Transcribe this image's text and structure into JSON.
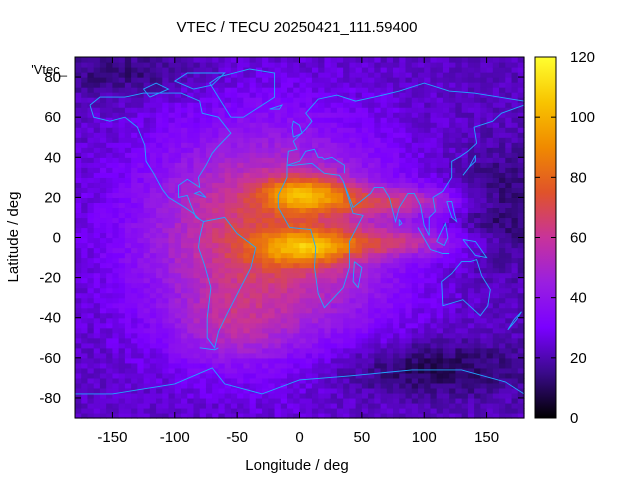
{
  "chart_data": {
    "type": "heatmap",
    "title": "VTEC / TECU 20250421_111.59400",
    "xlabel": "Longitude / deg",
    "ylabel": "Latitude / deg",
    "series_label": "'Vtec_",
    "xlim": [
      -180,
      180
    ],
    "ylim": [
      -90,
      90
    ],
    "xticks": [
      -150,
      -100,
      -50,
      0,
      50,
      100,
      150
    ],
    "xtick_labels": [
      "-150",
      "-100",
      "-50",
      "0",
      "50",
      "100",
      "150"
    ],
    "yticks": [
      -80,
      -60,
      -40,
      -20,
      0,
      20,
      40,
      60,
      80
    ],
    "ytick_labels": [
      "-80",
      "-60",
      "-40",
      "-20",
      "0",
      "20",
      "40",
      "60",
      "80"
    ],
    "colorbar": {
      "range": [
        0,
        120
      ],
      "ticks": [
        0,
        20,
        40,
        60,
        80,
        100,
        120
      ],
      "tick_labels": [
        "0",
        "20",
        "40",
        "60",
        "80",
        "100",
        "120"
      ]
    },
    "grid_resolution_deg": [
      5,
      2.5
    ],
    "background_vtec": 22,
    "vtec_features": [
      {
        "name": "northern-crest-africa",
        "lon": 5,
        "lat": 22,
        "peak": 42,
        "sigma_lon": 25,
        "sigma_lat": 6
      },
      {
        "name": "southern-crest-africa",
        "lon": 5,
        "lat": -5,
        "peak": 38,
        "sigma_lon": 28,
        "sigma_lat": 6
      },
      {
        "name": "sunlit-hemisphere",
        "lon": -25,
        "lat": 0,
        "peak": 48,
        "sigma_lon": 70,
        "sigma_lat": 38
      },
      {
        "name": "northern-crest-asia",
        "lon": 80,
        "lat": 18,
        "peak": 28,
        "sigma_lon": 40,
        "sigma_lat": 5
      },
      {
        "name": "southern-crest-asia",
        "lon": 80,
        "lat": -2,
        "peak": 26,
        "sigma_lon": 40,
        "sigma_lat": 5
      },
      {
        "name": "south-atlantic-tail",
        "lon": -55,
        "lat": -45,
        "peak": 14,
        "sigma_lon": 30,
        "sigma_lat": 12
      },
      {
        "name": "night-trough-pacific",
        "lon": 160,
        "lat": 15,
        "peak": -12,
        "sigma_lon": 30,
        "sigma_lat": 20
      },
      {
        "name": "night-trough-south",
        "lon": 100,
        "lat": -65,
        "peak": -14,
        "sigma_lon": 60,
        "sigma_lat": 10
      },
      {
        "name": "polar-low-north",
        "lon": -140,
        "lat": 82,
        "peak": -10,
        "sigma_lon": 40,
        "sigma_lat": 8
      }
    ]
  },
  "colors": {
    "colormap": [
      "#000000",
      "#3a0a8a",
      "#7a00ff",
      "#9a1fe0",
      "#c8339a",
      "#e0532a",
      "#f08a00",
      "#f8c400",
      "#ffff30"
    ],
    "coastline": "#1fa8ff"
  }
}
